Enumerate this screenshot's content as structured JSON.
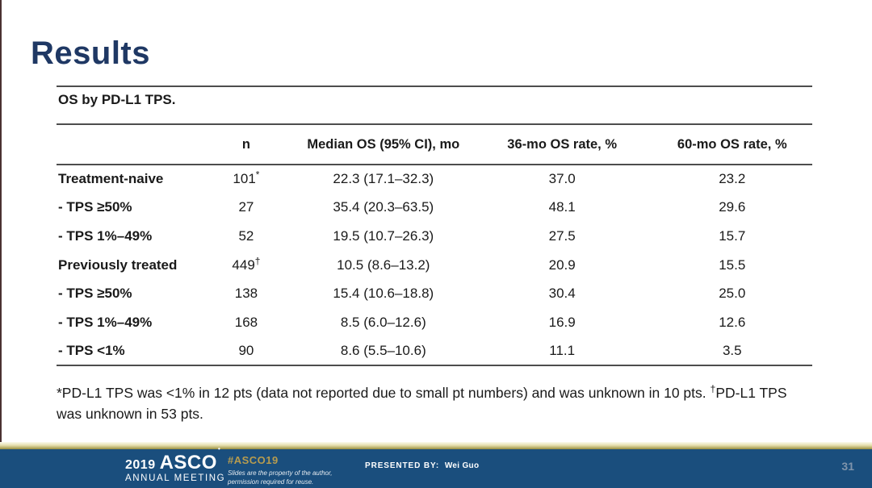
{
  "slide": {
    "title": "Results",
    "page_number": "31"
  },
  "colors": {
    "title_navy": "#1f3864",
    "rule_gray": "#4d4d4d",
    "footer_blue": "#1a4e7d",
    "gold_accent": "#b79c4f",
    "page_number_gray_blue": "#7f94ab"
  },
  "table": {
    "caption": "OS by PD-L1 TPS.",
    "columns": [
      "",
      "n",
      "Median OS (95% CI), mo",
      "36-mo OS rate, %",
      "60-mo OS rate, %"
    ],
    "rows": [
      {
        "label": "Treatment-naive",
        "n": "101",
        "n_sup": "*",
        "median": "22.3 (17.1–32.3)",
        "rate36": "37.0",
        "rate60": "23.2"
      },
      {
        "label": "- TPS ≥50%",
        "n": "27",
        "n_sup": "",
        "median": "35.4 (20.3–63.5)",
        "rate36": "48.1",
        "rate60": "29.6"
      },
      {
        "label": "- TPS 1%–49%",
        "n": "52",
        "n_sup": "",
        "median": "19.5 (10.7–26.3)",
        "rate36": "27.5",
        "rate60": "15.7"
      },
      {
        "label": "Previously treated",
        "n": "449",
        "n_sup": "†",
        "median": "10.5 (8.6–13.2)",
        "rate36": "20.9",
        "rate60": "15.5"
      },
      {
        "label": "- TPS ≥50%",
        "n": "138",
        "n_sup": "",
        "median": "15.4 (10.6–18.8)",
        "rate36": "30.4",
        "rate60": "25.0"
      },
      {
        "label": "- TPS 1%–49%",
        "n": "168",
        "n_sup": "",
        "median": "8.5 (6.0–12.6)",
        "rate36": "16.9",
        "rate60": "12.6"
      },
      {
        "label": "- TPS <1%",
        "n": "90",
        "n_sup": "",
        "median": "8.6 (5.5–10.6)",
        "rate36": "11.1",
        "rate60": "3.5"
      }
    ]
  },
  "footnote": {
    "part1": "*PD-L1 TPS was <1% in 12 pts (data not reported due to small pt numbers) and was unknown in 10 pts. ",
    "dagger": "†",
    "part2": "PD-L1 TPS was unknown in 53 pts."
  },
  "footer": {
    "logo_year": "2019",
    "logo_name": "ASCO",
    "logo_subtitle": "ANNUAL MEETING",
    "hashtag": "#ASCO19",
    "disclaimer_line1": "Slides are the property of the author,",
    "disclaimer_line2": "permission required for reuse.",
    "presented_label": "PRESENTED BY:",
    "presented_name": "Wei Guo"
  }
}
